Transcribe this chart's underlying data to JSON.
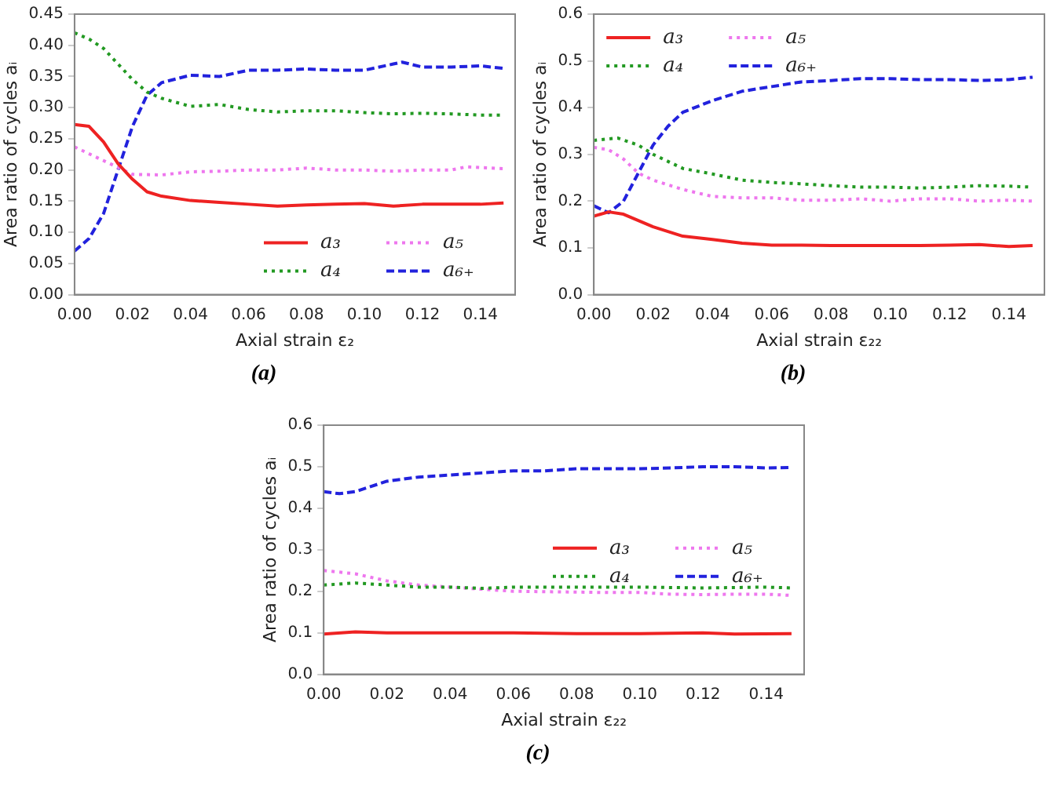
{
  "chart_data": [
    {
      "type": "line",
      "xlabel": "Axial strain ε₂",
      "ylabel": "Area ratio of cycles aᵢ",
      "annotations": [
        "(a)"
      ],
      "legend": "bottom right",
      "grid": false,
      "marker": "none",
      "xlim": [
        0,
        0.152
      ],
      "xticks": [
        {
          "value": 0,
          "label": "0.00"
        },
        {
          "value": 0.02,
          "label": "0.02"
        },
        {
          "value": 0.04,
          "label": "0.04"
        },
        {
          "value": 0.06,
          "label": "0.06"
        },
        {
          "value": 0.08,
          "label": "0.08"
        },
        {
          "value": 0.1,
          "label": "0.10"
        },
        {
          "value": 0.12,
          "label": "0.12"
        },
        {
          "value": 0.14,
          "label": "0.14"
        }
      ],
      "ylim": [
        0,
        0.45
      ],
      "yticks": [
        {
          "value": 0,
          "label": "0.00"
        },
        {
          "value": 0.05,
          "label": "0.05"
        },
        {
          "value": 0.1,
          "label": "0.10"
        },
        {
          "value": 0.15,
          "label": "0.15"
        },
        {
          "value": 0.2,
          "label": "0.20"
        },
        {
          "value": 0.25,
          "label": "0.25"
        },
        {
          "value": 0.3,
          "label": "0.30"
        },
        {
          "value": 0.35,
          "label": "0.35"
        },
        {
          "value": 0.4,
          "label": "0.40"
        },
        {
          "value": 0.45,
          "label": "0.45"
        }
      ],
      "series": [
        {
          "name": "a₃",
          "color": "#ee2222",
          "line_style": "solid",
          "x": [
            0,
            0.005,
            0.01,
            0.015,
            0.02,
            0.025,
            0.03,
            0.04,
            0.05,
            0.06,
            0.07,
            0.08,
            0.09,
            0.1,
            0.11,
            0.12,
            0.13,
            0.14,
            0.148
          ],
          "values": [
            0.273,
            0.27,
            0.245,
            0.21,
            0.185,
            0.165,
            0.158,
            0.151,
            0.148,
            0.145,
            0.142,
            0.144,
            0.145,
            0.146,
            0.142,
            0.145,
            0.145,
            0.145,
            0.147
          ]
        },
        {
          "name": "a₄",
          "color": "#229922",
          "line_style": "dotted",
          "x": [
            0,
            0.005,
            0.01,
            0.015,
            0.02,
            0.025,
            0.03,
            0.04,
            0.05,
            0.06,
            0.07,
            0.08,
            0.09,
            0.1,
            0.11,
            0.12,
            0.13,
            0.14,
            0.148
          ],
          "values": [
            0.42,
            0.41,
            0.395,
            0.37,
            0.345,
            0.325,
            0.315,
            0.302,
            0.305,
            0.297,
            0.293,
            0.295,
            0.295,
            0.292,
            0.29,
            0.291,
            0.29,
            0.288,
            0.288
          ]
        },
        {
          "name": "a₅",
          "color": "#ee77ee",
          "line_style": "dotted",
          "x": [
            0,
            0.01,
            0.02,
            0.03,
            0.04,
            0.05,
            0.06,
            0.07,
            0.08,
            0.09,
            0.1,
            0.11,
            0.12,
            0.13,
            0.135,
            0.148
          ],
          "values": [
            0.237,
            0.215,
            0.193,
            0.192,
            0.197,
            0.198,
            0.2,
            0.2,
            0.203,
            0.2,
            0.2,
            0.198,
            0.2,
            0.2,
            0.205,
            0.202
          ]
        },
        {
          "name": "a₆₊",
          "color": "#2222dd",
          "line_style": "dashed",
          "x": [
            0,
            0.005,
            0.01,
            0.015,
            0.02,
            0.025,
            0.03,
            0.04,
            0.05,
            0.06,
            0.07,
            0.08,
            0.09,
            0.1,
            0.11,
            0.113,
            0.12,
            0.13,
            0.14,
            0.148
          ],
          "values": [
            0.07,
            0.09,
            0.13,
            0.2,
            0.27,
            0.32,
            0.34,
            0.352,
            0.35,
            0.36,
            0.36,
            0.362,
            0.36,
            0.36,
            0.37,
            0.373,
            0.365,
            0.365,
            0.367,
            0.363
          ]
        }
      ]
    },
    {
      "type": "line",
      "xlabel": "Axial strain ε₂₂",
      "ylabel": "Area ratio of cycles aᵢ",
      "annotations": [
        "(b)"
      ],
      "legend": "top left",
      "grid": false,
      "marker": "none",
      "xlim": [
        0,
        0.152
      ],
      "xticks": [
        {
          "value": 0,
          "label": "0.00"
        },
        {
          "value": 0.02,
          "label": "0.02"
        },
        {
          "value": 0.04,
          "label": "0.04"
        },
        {
          "value": 0.06,
          "label": "0.06"
        },
        {
          "value": 0.08,
          "label": "0.08"
        },
        {
          "value": 0.1,
          "label": "0.10"
        },
        {
          "value": 0.12,
          "label": "0.12"
        },
        {
          "value": 0.14,
          "label": "0.14"
        }
      ],
      "ylim": [
        0,
        0.6
      ],
      "yticks": [
        {
          "value": 0,
          "label": "0.0"
        },
        {
          "value": 0.1,
          "label": "0.1"
        },
        {
          "value": 0.2,
          "label": "0.2"
        },
        {
          "value": 0.3,
          "label": "0.3"
        },
        {
          "value": 0.4,
          "label": "0.4"
        },
        {
          "value": 0.5,
          "label": "0.5"
        },
        {
          "value": 0.6,
          "label": "0.6"
        }
      ],
      "series": [
        {
          "name": "a₃",
          "color": "#ee2222",
          "line_style": "solid",
          "x": [
            0,
            0.005,
            0.01,
            0.02,
            0.03,
            0.04,
            0.05,
            0.06,
            0.07,
            0.08,
            0.09,
            0.1,
            0.11,
            0.12,
            0.13,
            0.14,
            0.148
          ],
          "values": [
            0.168,
            0.177,
            0.172,
            0.145,
            0.125,
            0.118,
            0.11,
            0.106,
            0.106,
            0.105,
            0.105,
            0.105,
            0.105,
            0.106,
            0.107,
            0.103,
            0.105
          ]
        },
        {
          "name": "a₄",
          "color": "#229922",
          "line_style": "dotted",
          "x": [
            0,
            0.008,
            0.015,
            0.02,
            0.03,
            0.04,
            0.05,
            0.06,
            0.07,
            0.08,
            0.09,
            0.1,
            0.11,
            0.12,
            0.13,
            0.14,
            0.148
          ],
          "values": [
            0.33,
            0.335,
            0.32,
            0.3,
            0.27,
            0.258,
            0.245,
            0.24,
            0.237,
            0.233,
            0.23,
            0.23,
            0.228,
            0.23,
            0.233,
            0.232,
            0.23
          ]
        },
        {
          "name": "a₅",
          "color": "#ee77ee",
          "line_style": "dotted",
          "x": [
            0,
            0.005,
            0.01,
            0.015,
            0.02,
            0.03,
            0.04,
            0.05,
            0.06,
            0.07,
            0.08,
            0.09,
            0.1,
            0.11,
            0.12,
            0.13,
            0.14,
            0.148
          ],
          "values": [
            0.315,
            0.31,
            0.29,
            0.26,
            0.245,
            0.225,
            0.21,
            0.207,
            0.207,
            0.202,
            0.202,
            0.205,
            0.2,
            0.205,
            0.205,
            0.2,
            0.202,
            0.2
          ]
        },
        {
          "name": "a₆₊",
          "color": "#2222dd",
          "line_style": "dashed",
          "x": [
            0,
            0.005,
            0.01,
            0.015,
            0.02,
            0.025,
            0.03,
            0.04,
            0.05,
            0.06,
            0.07,
            0.08,
            0.09,
            0.1,
            0.11,
            0.12,
            0.13,
            0.14,
            0.148
          ],
          "values": [
            0.19,
            0.175,
            0.2,
            0.26,
            0.32,
            0.36,
            0.39,
            0.415,
            0.435,
            0.445,
            0.455,
            0.458,
            0.462,
            0.462,
            0.46,
            0.46,
            0.458,
            0.46,
            0.465
          ]
        }
      ]
    },
    {
      "type": "line",
      "xlabel": "Axial strain ε₂₂",
      "ylabel": "Area ratio of cycles aᵢ",
      "annotations": [
        "(c)"
      ],
      "legend": "right",
      "grid": false,
      "marker": "none",
      "xlim": [
        0,
        0.152
      ],
      "xticks": [
        {
          "value": 0,
          "label": "0.00"
        },
        {
          "value": 0.02,
          "label": "0.02"
        },
        {
          "value": 0.04,
          "label": "0.04"
        },
        {
          "value": 0.06,
          "label": "0.06"
        },
        {
          "value": 0.08,
          "label": "0.08"
        },
        {
          "value": 0.1,
          "label": "0.10"
        },
        {
          "value": 0.12,
          "label": "0.12"
        },
        {
          "value": 0.14,
          "label": "0.14"
        }
      ],
      "ylim": [
        0,
        0.6
      ],
      "yticks": [
        {
          "value": 0,
          "label": "0.0"
        },
        {
          "value": 0.1,
          "label": "0.1"
        },
        {
          "value": 0.2,
          "label": "0.2"
        },
        {
          "value": 0.3,
          "label": "0.3"
        },
        {
          "value": 0.4,
          "label": "0.4"
        },
        {
          "value": 0.5,
          "label": "0.5"
        },
        {
          "value": 0.6,
          "label": "0.6"
        }
      ],
      "series": [
        {
          "name": "a₃",
          "color": "#ee2222",
          "line_style": "solid",
          "x": [
            0,
            0.01,
            0.02,
            0.04,
            0.06,
            0.08,
            0.1,
            0.12,
            0.13,
            0.148
          ],
          "values": [
            0.097,
            0.102,
            0.1,
            0.1,
            0.1,
            0.098,
            0.098,
            0.1,
            0.097,
            0.098
          ]
        },
        {
          "name": "a₄",
          "color": "#229922",
          "line_style": "dotted",
          "x": [
            0,
            0.01,
            0.02,
            0.03,
            0.04,
            0.05,
            0.06,
            0.08,
            0.1,
            0.12,
            0.14,
            0.148
          ],
          "values": [
            0.215,
            0.22,
            0.215,
            0.21,
            0.21,
            0.207,
            0.21,
            0.21,
            0.21,
            0.208,
            0.21,
            0.208
          ]
        },
        {
          "name": "a₅",
          "color": "#ee77ee",
          "line_style": "dotted",
          "x": [
            0,
            0.01,
            0.02,
            0.03,
            0.04,
            0.05,
            0.06,
            0.08,
            0.09,
            0.1,
            0.11,
            0.12,
            0.13,
            0.14,
            0.148
          ],
          "values": [
            0.25,
            0.242,
            0.225,
            0.215,
            0.21,
            0.205,
            0.2,
            0.198,
            0.197,
            0.197,
            0.193,
            0.192,
            0.193,
            0.193,
            0.19
          ]
        },
        {
          "name": "a₆₊",
          "color": "#2222dd",
          "line_style": "dashed",
          "x": [
            0,
            0.005,
            0.01,
            0.02,
            0.03,
            0.04,
            0.05,
            0.06,
            0.07,
            0.08,
            0.09,
            0.1,
            0.11,
            0.12,
            0.13,
            0.14,
            0.148
          ],
          "values": [
            0.44,
            0.435,
            0.44,
            0.465,
            0.475,
            0.48,
            0.485,
            0.49,
            0.49,
            0.495,
            0.495,
            0.495,
            0.497,
            0.5,
            0.5,
            0.497,
            0.498
          ]
        }
      ]
    }
  ]
}
